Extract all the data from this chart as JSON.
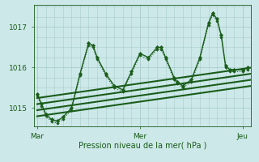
{
  "bg_color": "#cce8e8",
  "grid_color": "#aacccc",
  "line_color": "#1a5c1a",
  "marker_color": "#1a5c1a",
  "xlabel": "Pression niveau de la mer( hPa )",
  "xlabel_color": "#1a5c1a",
  "xtick_labels": [
    "Mar",
    "Mer",
    "Jeu"
  ],
  "xtick_positions": [
    0,
    144,
    288
  ],
  "ytick_labels": [
    "1015",
    "1016",
    "1017"
  ],
  "ytick_positions": [
    1015,
    1016,
    1017
  ],
  "ylim": [
    1014.55,
    1017.55
  ],
  "xlim": [
    -5,
    300
  ],
  "series": [
    {
      "x": [
        0,
        6,
        12,
        20,
        28,
        36,
        48,
        60,
        72,
        78,
        84,
        96,
        108,
        120,
        132,
        144,
        156,
        168,
        174,
        180,
        192,
        196,
        204,
        216,
        228,
        240,
        246,
        252,
        258,
        264,
        270,
        276,
        288,
        295
      ],
      "y": [
        1015.35,
        1015.1,
        1014.85,
        1014.72,
        1014.68,
        1014.78,
        1015.0,
        1015.85,
        1016.6,
        1016.55,
        1016.25,
        1015.85,
        1015.55,
        1015.45,
        1015.9,
        1016.35,
        1016.25,
        1016.5,
        1016.5,
        1016.25,
        1015.75,
        1015.65,
        1015.55,
        1015.7,
        1016.25,
        1017.1,
        1017.35,
        1017.2,
        1016.8,
        1016.05,
        1015.95,
        1015.95,
        1015.95,
        1016.0
      ],
      "linewidth": 1.0,
      "dotted": false,
      "marker": "D",
      "markersize": 2.2
    },
    {
      "x": [
        0,
        6,
        12,
        20,
        28,
        36,
        48,
        60,
        72,
        78,
        84,
        96,
        108,
        120,
        132,
        144,
        156,
        168,
        174,
        180,
        192,
        196,
        204,
        216,
        228,
        240,
        246,
        252,
        258,
        264,
        270,
        276,
        288,
        295
      ],
      "y": [
        1015.3,
        1015.05,
        1014.8,
        1014.67,
        1014.63,
        1014.73,
        1014.95,
        1015.8,
        1016.55,
        1016.5,
        1016.2,
        1015.8,
        1015.5,
        1015.4,
        1015.85,
        1016.3,
        1016.2,
        1016.45,
        1016.45,
        1016.2,
        1015.7,
        1015.6,
        1015.5,
        1015.65,
        1016.2,
        1017.05,
        1017.3,
        1017.15,
        1016.75,
        1016.0,
        1015.9,
        1015.9,
        1015.9,
        1015.95
      ],
      "linewidth": 0.8,
      "dotted": true,
      "marker": "D",
      "markersize": 1.8
    },
    {
      "x": [
        0,
        300
      ],
      "y": [
        1015.25,
        1016.0
      ],
      "linewidth": 1.5,
      "dotted": false,
      "marker": null,
      "markersize": 0
    },
    {
      "x": [
        0,
        300
      ],
      "y": [
        1015.1,
        1015.85
      ],
      "linewidth": 1.5,
      "dotted": false,
      "marker": null,
      "markersize": 0
    },
    {
      "x": [
        0,
        300
      ],
      "y": [
        1014.95,
        1015.7
      ],
      "linewidth": 1.5,
      "dotted": false,
      "marker": null,
      "markersize": 0
    },
    {
      "x": [
        0,
        300
      ],
      "y": [
        1014.8,
        1015.55
      ],
      "linewidth": 1.5,
      "dotted": false,
      "marker": null,
      "markersize": 0
    }
  ]
}
